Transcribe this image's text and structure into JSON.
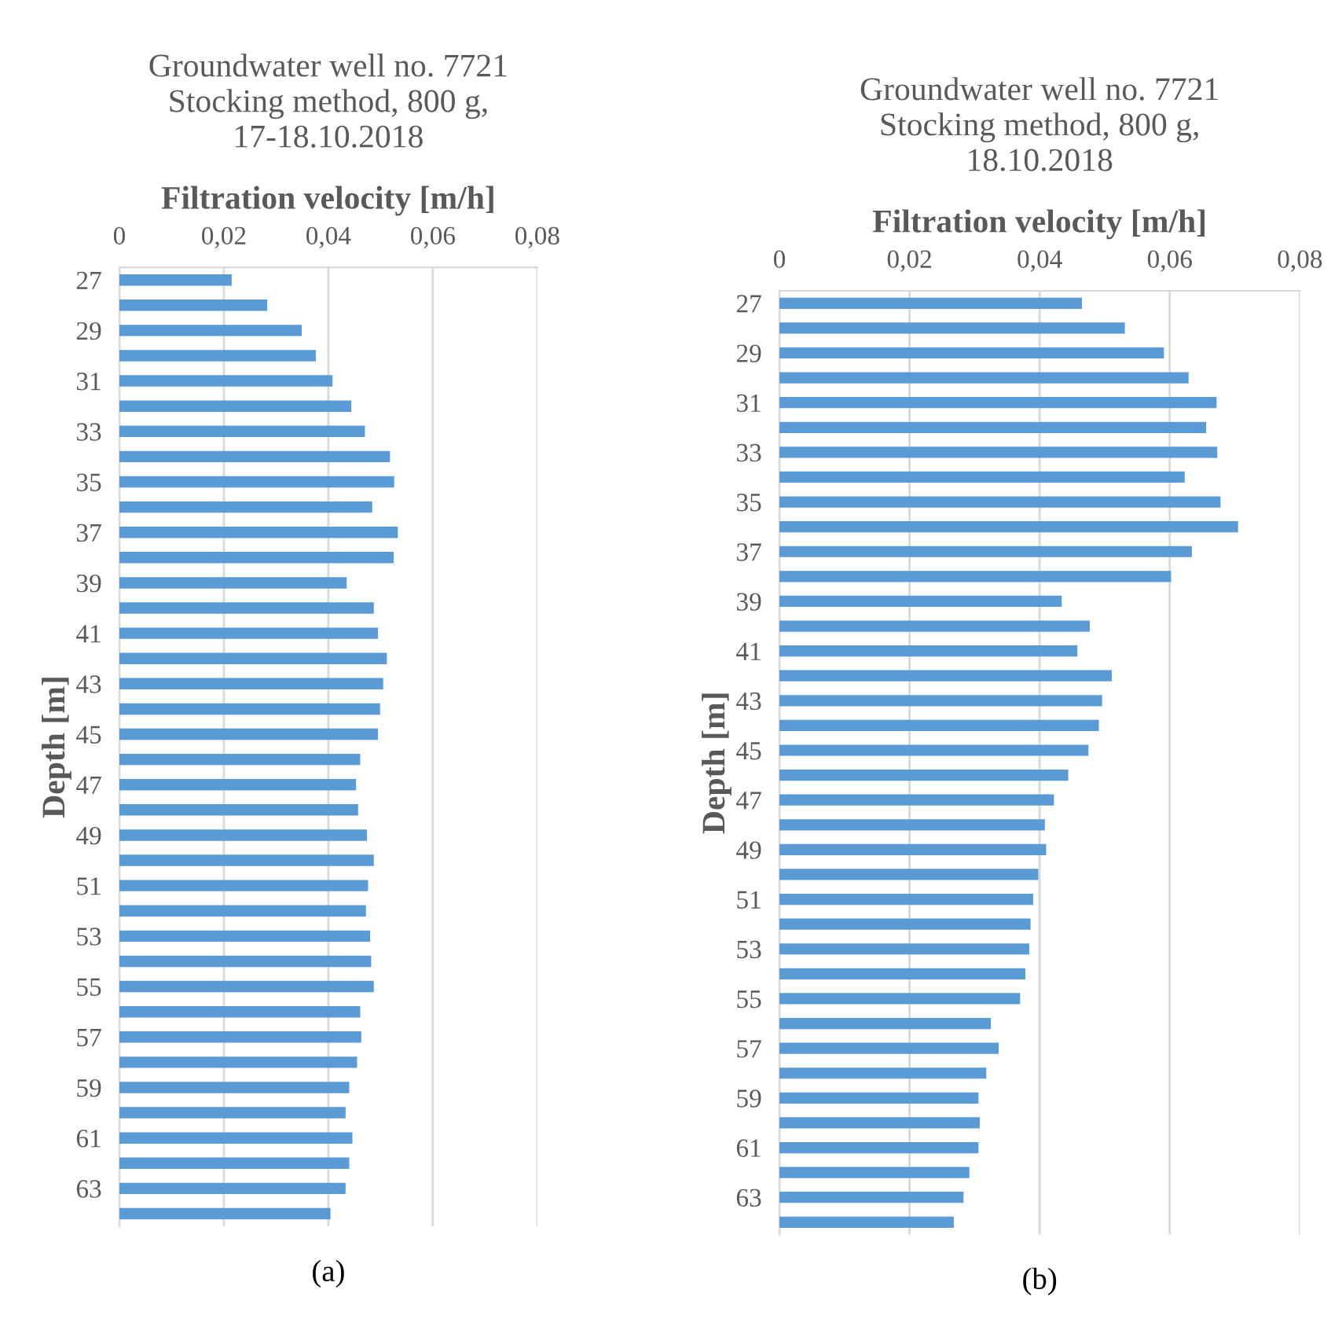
{
  "chart_data": [
    {
      "type": "bar",
      "orientation": "horizontal",
      "title": "Groundwater well no. 7721\nStocking method, 800 g,\n17-18.10.2018",
      "xlabel": "Filtration velocity [m/h]",
      "ylabel": "Depth [m]",
      "categories": [
        "27",
        null,
        "29",
        null,
        "31",
        null,
        "33",
        null,
        "35",
        null,
        "37",
        null,
        "39",
        null,
        "41",
        null,
        "43",
        null,
        "45",
        null,
        "47",
        null,
        "49",
        null,
        "51",
        null,
        "53",
        null,
        "55",
        null,
        "57",
        null,
        "59",
        null,
        "61",
        null,
        "63",
        null
      ],
      "values": [
        0.0215,
        0.0283,
        0.0349,
        0.0376,
        0.0408,
        0.0444,
        0.047,
        0.0518,
        0.0526,
        0.0484,
        0.0533,
        0.0525,
        0.0435,
        0.0487,
        0.0495,
        0.0512,
        0.0505,
        0.0499,
        0.0495,
        0.0461,
        0.0453,
        0.0457,
        0.0474,
        0.0487,
        0.0476,
        0.0472,
        0.048,
        0.0482,
        0.0487,
        0.0461,
        0.0463,
        0.0455,
        0.044,
        0.0433,
        0.0446,
        0.044,
        0.0433,
        0.0404
      ],
      "color": "#5b9bd5",
      "xlim": [
        0,
        0.08
      ],
      "xticks": [
        0,
        {
          "value": 0.02,
          "label": "0,02"
        },
        {
          "value": 0.04,
          "label": "0,04"
        },
        {
          "value": 0.06,
          "label": "0,06"
        },
        {
          "value": 0.08,
          "label": "0,08"
        }
      ],
      "grid": "x",
      "annotations": [
        "(a)"
      ]
    },
    {
      "type": "bar",
      "orientation": "horizontal",
      "title": "Groundwater well no. 7721\nStocking method, 800 g,\n18.10.2018",
      "xlabel": "Filtration velocity [m/h]",
      "ylabel": "Depth [m]",
      "categories": [
        "27",
        null,
        "29",
        null,
        "31",
        null,
        "33",
        null,
        "35",
        null,
        "37",
        null,
        "39",
        null,
        "41",
        null,
        "43",
        null,
        "45",
        null,
        "47",
        null,
        "49",
        null,
        "51",
        null,
        "53",
        null,
        "55",
        null,
        "57",
        null,
        "59",
        null,
        "61",
        null,
        "63",
        null
      ],
      "values": [
        0.0465,
        0.0531,
        0.0591,
        0.0629,
        0.0672,
        0.0656,
        0.0673,
        0.0623,
        0.0678,
        0.0705,
        0.0634,
        0.0602,
        0.0434,
        0.0477,
        0.0458,
        0.0511,
        0.0496,
        0.0491,
        0.0475,
        0.0444,
        0.0422,
        0.0408,
        0.041,
        0.0398,
        0.039,
        0.0386,
        0.0384,
        0.0378,
        0.037,
        0.0325,
        0.0337,
        0.0318,
        0.0306,
        0.0308,
        0.0306,
        0.0292,
        0.0283,
        0.0268
      ],
      "color": "#5b9bd5",
      "xlim": [
        0,
        0.08
      ],
      "xticks": [
        0,
        {
          "value": 0.02,
          "label": "0,02"
        },
        {
          "value": 0.04,
          "label": "0,04"
        },
        {
          "value": 0.06,
          "label": "0,06"
        },
        {
          "value": 0.08,
          "label": "0,08"
        }
      ],
      "grid": "x",
      "annotations": [
        "(b)"
      ]
    }
  ]
}
